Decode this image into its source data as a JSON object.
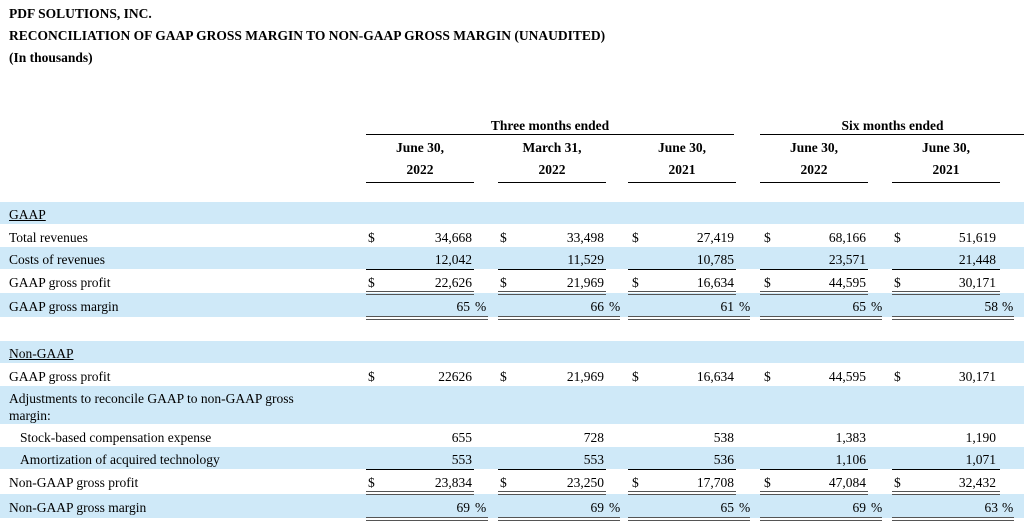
{
  "header": {
    "company": "PDF SOLUTIONS, INC.",
    "title": "RECONCILIATION OF GAAP GROSS MARGIN TO NON-GAAP GROSS MARGIN (UNAUDITED)",
    "units": "(In thousands)"
  },
  "columns": {
    "group1": "Three months ended",
    "group2": "Six months ended",
    "c1": [
      "June 30,",
      "2022"
    ],
    "c2": [
      "March 31,",
      "2022"
    ],
    "c3": [
      "June 30,",
      "2021"
    ],
    "c4": [
      "June 30,",
      "2022"
    ],
    "c5": [
      "June 30,",
      "2021"
    ]
  },
  "gaap": {
    "section": "GAAP",
    "total_revenues": {
      "label": "Total revenues",
      "values": [
        "34,668",
        "33,498",
        "27,419",
        "68,166",
        "51,619"
      ]
    },
    "costs_of_revenues": {
      "label": "Costs of revenues",
      "values": [
        "12,042",
        "11,529",
        "10,785",
        "23,571",
        "21,448"
      ]
    },
    "gross_profit": {
      "label": "GAAP gross profit",
      "values": [
        "22,626",
        "21,969",
        "16,634",
        "44,595",
        "30,171"
      ]
    },
    "gross_margin": {
      "label": "GAAP gross margin",
      "values": [
        "65",
        "66",
        "61",
        "65",
        "58"
      ]
    }
  },
  "nongaap": {
    "section": "Non-GAAP",
    "gaap_gross_profit": {
      "label": "GAAP gross profit",
      "values": [
        "22626",
        "21,969",
        "16,634",
        "44,595",
        "30,171"
      ]
    },
    "adjustments": {
      "line1": "Adjustments to reconcile GAAP to non-GAAP gross",
      "line2": "margin:"
    },
    "sbc": {
      "label": "Stock-based compensation expense",
      "values": [
        "655",
        "728",
        "538",
        "1,383",
        "1,190"
      ]
    },
    "amort": {
      "label": "Amortization of acquired technology",
      "values": [
        "553",
        "553",
        "536",
        "1,106",
        "1,071"
      ]
    },
    "gross_profit": {
      "label": "Non-GAAP gross profit",
      "values": [
        "23,834",
        "23,250",
        "17,708",
        "47,084",
        "32,432"
      ]
    },
    "gross_margin": {
      "label": "Non-GAAP gross margin",
      "values": [
        "69",
        "69",
        "65",
        "69",
        "63"
      ]
    }
  },
  "symbols": {
    "dollar": "$",
    "percent": "%"
  }
}
